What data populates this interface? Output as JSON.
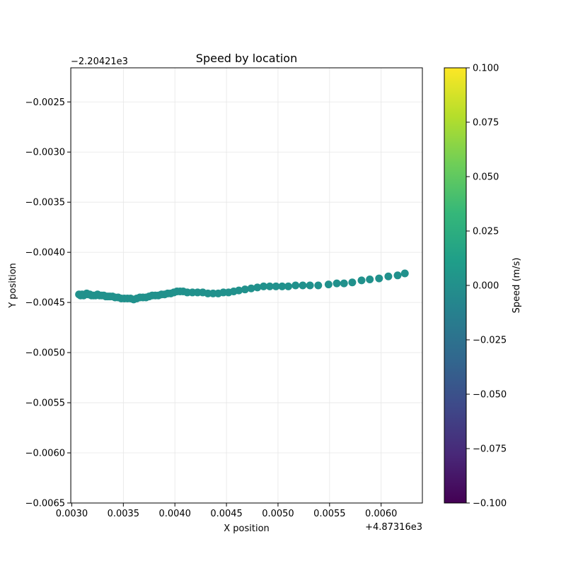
{
  "chart_data": {
    "type": "scatter",
    "title": "Speed by location",
    "xlabel": "X position",
    "ylabel": "Y position",
    "x_offset_label": "+4.87316e3",
    "y_offset_label": "−2.20421e3",
    "xlim": [
      0.00299,
      0.0064
    ],
    "ylim": [
      -0.0065,
      -0.00216
    ],
    "x_ticks": [
      0.003,
      0.0035,
      0.004,
      0.0045,
      0.005,
      0.0055,
      0.006
    ],
    "x_tick_labels": [
      "0.0030",
      "0.0035",
      "0.0040",
      "0.0045",
      "0.0050",
      "0.0055",
      "0.0060"
    ],
    "y_ticks": [
      -0.0025,
      -0.003,
      -0.0035,
      -0.004,
      -0.0045,
      -0.005,
      -0.0055,
      -0.006,
      -0.0065
    ],
    "y_tick_labels": [
      "−0.0025",
      "−0.0030",
      "−0.0035",
      "−0.0040",
      "−0.0045",
      "−0.0050",
      "−0.0055",
      "−0.0060",
      "−0.0065"
    ],
    "grid": true,
    "point_color": "#21918c",
    "colorbar": {
      "label": "Speed (m/s)",
      "range": [
        -0.1,
        0.1
      ],
      "ticks": [
        0.1,
        0.075,
        0.05,
        0.025,
        0.0,
        -0.025,
        -0.05,
        -0.075,
        -0.1
      ],
      "tick_labels": [
        "0.100",
        "0.075",
        "0.050",
        "0.025",
        "0.000",
        "−0.025",
        "−0.050",
        "−0.075",
        "−0.100"
      ],
      "colormap": "viridis",
      "colormap_stops": [
        "#440154",
        "#482878",
        "#3e4989",
        "#31688e",
        "#26828e",
        "#1f9e89",
        "#35b779",
        "#6ece58",
        "#b5de2b",
        "#fde725"
      ]
    },
    "points": [
      [
        0.00307,
        -0.00442
      ],
      [
        0.003085,
        -0.00443
      ],
      [
        0.0031,
        -0.00442
      ],
      [
        0.003115,
        -0.00443
      ],
      [
        0.00313,
        -0.00442
      ],
      [
        0.003145,
        -0.00441
      ],
      [
        0.00316,
        -0.00442
      ],
      [
        0.003175,
        -0.00442
      ],
      [
        0.00319,
        -0.00443
      ],
      [
        0.00321,
        -0.00443
      ],
      [
        0.00323,
        -0.00443
      ],
      [
        0.00325,
        -0.00442
      ],
      [
        0.00327,
        -0.00443
      ],
      [
        0.00329,
        -0.00443
      ],
      [
        0.00331,
        -0.00443
      ],
      [
        0.00333,
        -0.00444
      ],
      [
        0.00335,
        -0.00444
      ],
      [
        0.00337,
        -0.00444
      ],
      [
        0.003395,
        -0.00444
      ],
      [
        0.00342,
        -0.00445
      ],
      [
        0.00345,
        -0.00445
      ],
      [
        0.00348,
        -0.00446
      ],
      [
        0.00351,
        -0.00446
      ],
      [
        0.00354,
        -0.00446
      ],
      [
        0.00357,
        -0.00446
      ],
      [
        0.0036,
        -0.00447
      ],
      [
        0.00363,
        -0.00446
      ],
      [
        0.00366,
        -0.00445
      ],
      [
        0.00369,
        -0.00445
      ],
      [
        0.00372,
        -0.00445
      ],
      [
        0.00375,
        -0.00444
      ],
      [
        0.00378,
        -0.00443
      ],
      [
        0.00381,
        -0.00443
      ],
      [
        0.00384,
        -0.00443
      ],
      [
        0.00387,
        -0.00442
      ],
      [
        0.0039,
        -0.00442
      ],
      [
        0.00393,
        -0.00441
      ],
      [
        0.00396,
        -0.00441
      ],
      [
        0.00399,
        -0.0044
      ],
      [
        0.00402,
        -0.00439
      ],
      [
        0.00405,
        -0.00439
      ],
      [
        0.00408,
        -0.00439
      ],
      [
        0.00412,
        -0.0044
      ],
      [
        0.00417,
        -0.0044
      ],
      [
        0.00422,
        -0.0044
      ],
      [
        0.00427,
        -0.0044
      ],
      [
        0.00432,
        -0.00441
      ],
      [
        0.00437,
        -0.00441
      ],
      [
        0.00442,
        -0.00441
      ],
      [
        0.00447,
        -0.0044
      ],
      [
        0.00452,
        -0.0044
      ],
      [
        0.00457,
        -0.00439
      ],
      [
        0.00462,
        -0.00438
      ],
      [
        0.00468,
        -0.00437
      ],
      [
        0.00474,
        -0.00436
      ],
      [
        0.0048,
        -0.00435
      ],
      [
        0.00486,
        -0.00434
      ],
      [
        0.00492,
        -0.00434
      ],
      [
        0.00498,
        -0.00434
      ],
      [
        0.00504,
        -0.00434
      ],
      [
        0.0051,
        -0.00434
      ],
      [
        0.00517,
        -0.00433
      ],
      [
        0.00524,
        -0.00433
      ],
      [
        0.00531,
        -0.00433
      ],
      [
        0.00539,
        -0.00433
      ],
      [
        0.00549,
        -0.00432
      ],
      [
        0.00557,
        -0.00431
      ],
      [
        0.00564,
        -0.00431
      ],
      [
        0.00572,
        -0.0043
      ],
      [
        0.00581,
        -0.00428
      ],
      [
        0.00589,
        -0.00427
      ],
      [
        0.00598,
        -0.00426
      ],
      [
        0.00607,
        -0.00424
      ],
      [
        0.00616,
        -0.00423
      ],
      [
        0.00623,
        -0.00421
      ]
    ]
  }
}
